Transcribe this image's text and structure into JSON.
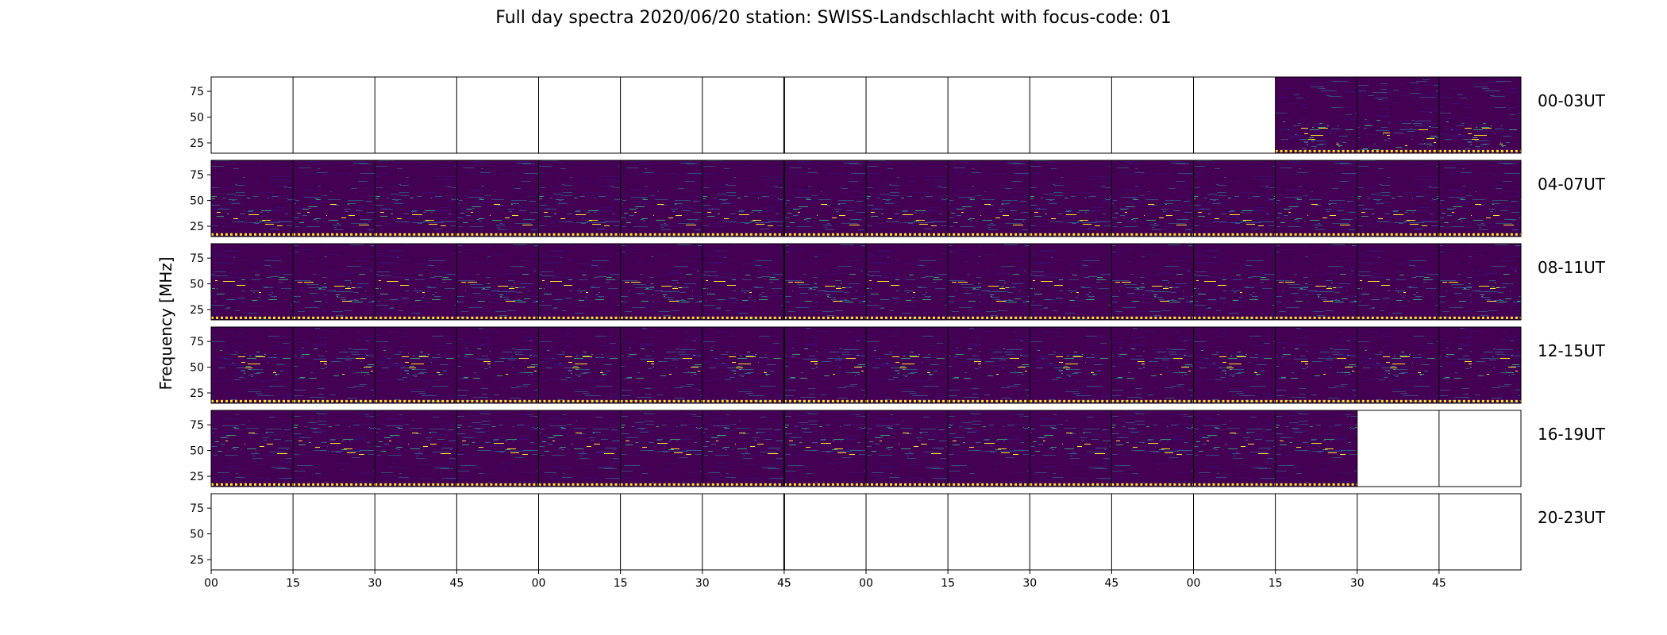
{
  "title": "Full day spectra 2020/06/20 station: SWISS-Landschlacht with focus-code: 01",
  "chart_data": {
    "type": "heatmap",
    "title": "Full day spectra 2020/06/20 station: SWISS-Landschlacht with focus-code: 01",
    "ylabel": "Frequency [MHz]",
    "xlabel": "",
    "x_tick_labels": [
      "00",
      "15",
      "30",
      "45",
      "00",
      "15",
      "30",
      "45",
      "00",
      "15",
      "30",
      "45",
      "00",
      "15",
      "30",
      "45"
    ],
    "y_tick_labels": [
      "75",
      "50",
      "25"
    ],
    "y_ticks": [
      75,
      50,
      25
    ],
    "ylim": [
      15,
      89
    ],
    "colormap": "viridis",
    "rows": [
      {
        "label": "00-03UT",
        "panels": [
          0,
          0,
          0,
          0,
          0,
          0,
          0,
          0,
          0,
          0,
          0,
          0,
          0,
          1,
          1,
          1
        ]
      },
      {
        "label": "04-07UT",
        "panels": [
          1,
          1,
          1,
          1,
          1,
          1,
          1,
          1,
          1,
          1,
          1,
          1,
          1,
          1,
          1,
          1
        ]
      },
      {
        "label": "08-11UT",
        "panels": [
          1,
          1,
          1,
          1,
          1,
          1,
          1,
          1,
          1,
          1,
          1,
          1,
          1,
          1,
          1,
          1
        ]
      },
      {
        "label": "12-15UT",
        "panels": [
          1,
          1,
          1,
          1,
          1,
          1,
          1,
          1,
          1,
          1,
          1,
          1,
          1,
          1,
          1,
          1
        ]
      },
      {
        "label": "16-19UT",
        "panels": [
          1,
          1,
          1,
          1,
          1,
          1,
          1,
          1,
          1,
          1,
          1,
          1,
          1,
          1,
          0,
          0
        ]
      },
      {
        "label": "20-23UT",
        "panels": [
          0,
          0,
          0,
          0,
          0,
          0,
          0,
          0,
          0,
          0,
          0,
          0,
          0,
          0,
          0,
          0
        ]
      }
    ],
    "colors": {
      "background": "#440154",
      "low": "#3b0f70",
      "mid": "#31688e",
      "high": "#35b779",
      "peak": "#fde725"
    }
  }
}
